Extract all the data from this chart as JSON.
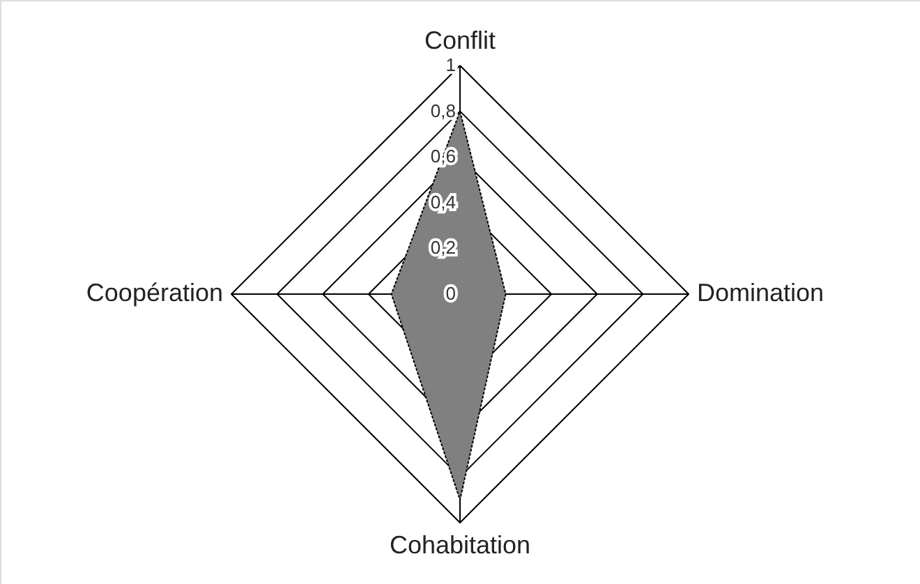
{
  "chart_data": {
    "type": "radar",
    "categories": [
      "Conflit",
      "Domination",
      "Cohabitation",
      "Coopération"
    ],
    "series": [
      {
        "color": "#808080",
        "values": [
          0.8,
          0.2,
          0.9,
          0.3
        ]
      }
    ],
    "ylim": [
      0,
      1
    ],
    "yticks": [
      {
        "value": 0,
        "label": "0"
      },
      {
        "value": 0.2,
        "label": "0,2"
      },
      {
        "value": 0.4,
        "label": "0,4"
      },
      {
        "value": 0.6,
        "label": "0,6"
      },
      {
        "value": 0.8,
        "label": "0,8"
      },
      {
        "value": 1,
        "label": "1"
      }
    ],
    "legend": false
  }
}
